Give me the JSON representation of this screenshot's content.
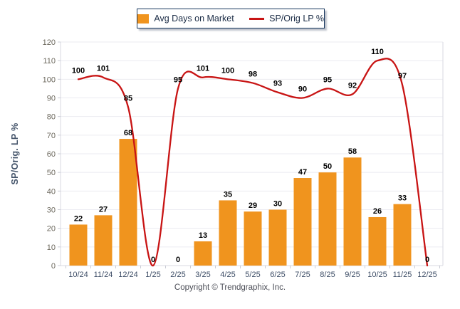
{
  "legend": {
    "bar_label": "Avg Days on Market",
    "line_label": "SP/Orig LP %"
  },
  "y_axis": {
    "title": "SP/Orig. LP %",
    "min": 0,
    "max": 120,
    "tick_step": 10,
    "ticks": [
      0,
      10,
      20,
      30,
      40,
      50,
      60,
      70,
      80,
      90,
      100,
      110,
      120
    ]
  },
  "footer": {
    "copyright": "Copyright © Trendgraphix, Inc."
  },
  "colors": {
    "bar": "#F0941E",
    "line": "#C81414",
    "grid": "#EBEBF1",
    "axis": "#D9DAE2",
    "tick": "#C9CBD4",
    "x_label": "#3D4D66",
    "y_label": "#6B675C",
    "data_label": "#000000"
  },
  "chart_data": {
    "type": "bar+line",
    "title": "",
    "xlabel": "",
    "ylabel": "SP/Orig. LP %",
    "ylim": [
      0,
      120
    ],
    "grid": true,
    "legend_position": "top",
    "categories": [
      "10/24",
      "11/24",
      "12/24",
      "1/25",
      "2/25",
      "3/25",
      "4/25",
      "5/25",
      "6/25",
      "7/25",
      "8/25",
      "9/25",
      "10/25",
      "11/25",
      "12/25"
    ],
    "series": [
      {
        "name": "Avg Days on Market",
        "type": "bar",
        "color": "#F0941E",
        "values": [
          22,
          27,
          68,
          0,
          0,
          13,
          35,
          29,
          30,
          47,
          50,
          58,
          26,
          33,
          0
        ]
      },
      {
        "name": "SP/Orig LP %",
        "type": "line",
        "color": "#C81414",
        "values": [
          100,
          101,
          85,
          0,
          95,
          101,
          100,
          98,
          93,
          90,
          95,
          92,
          110,
          97,
          0
        ]
      }
    ]
  }
}
